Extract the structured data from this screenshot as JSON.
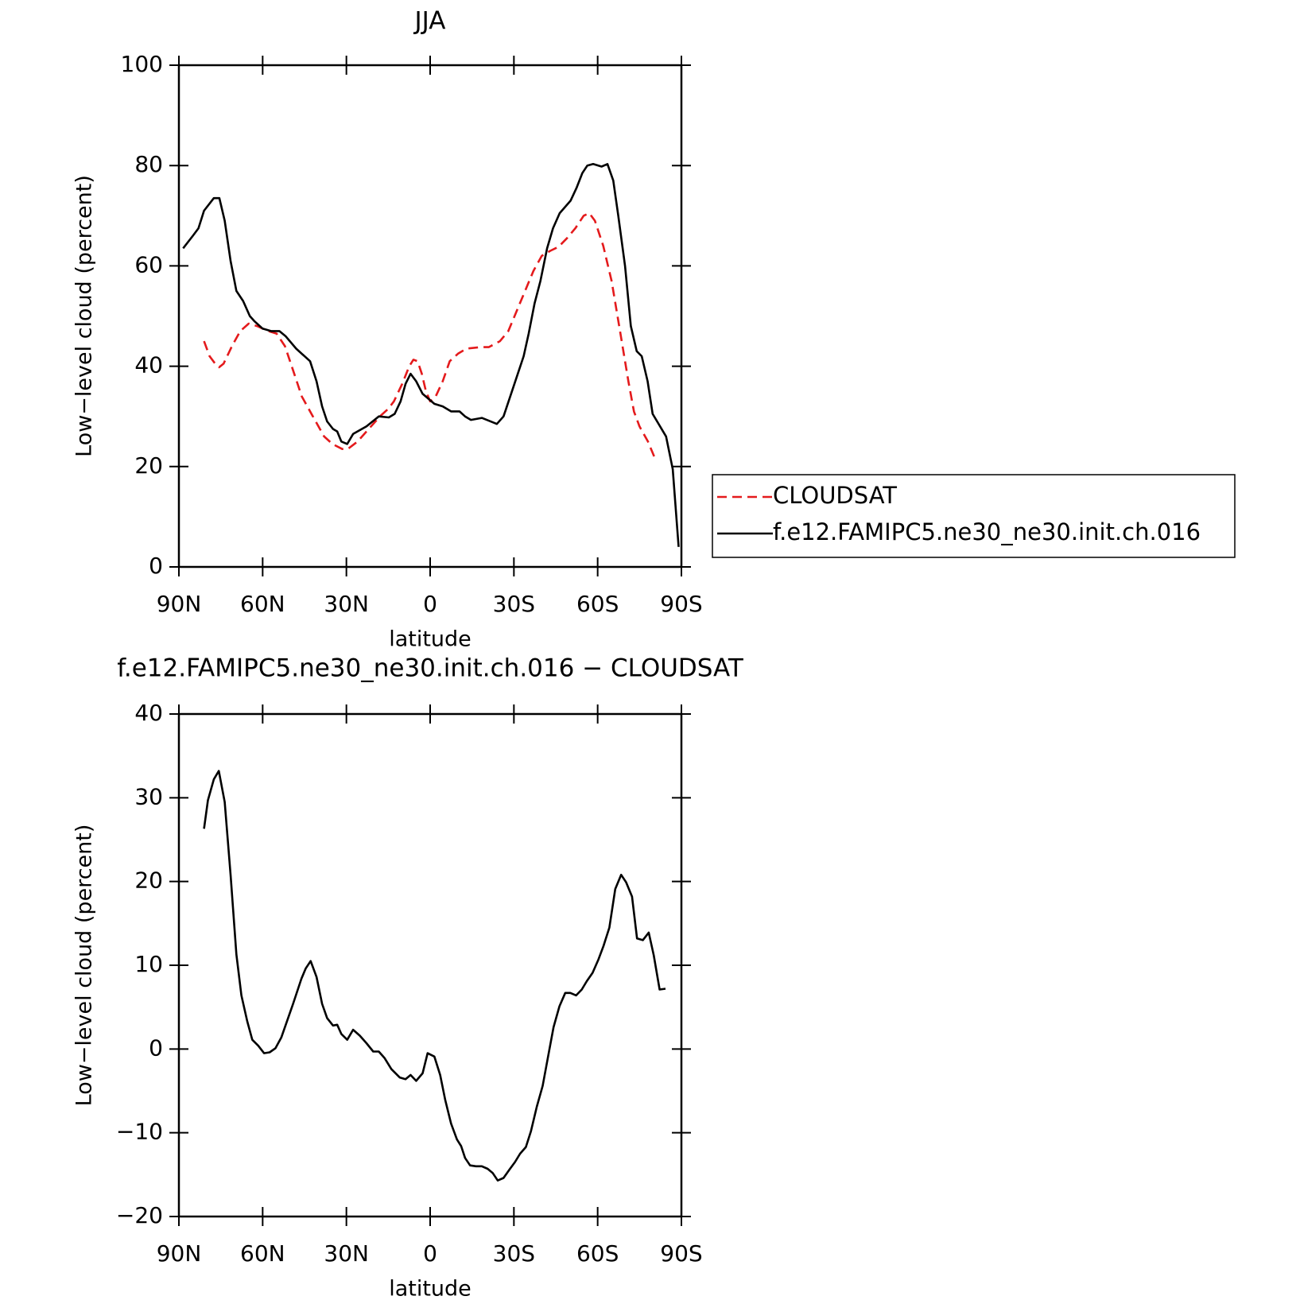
{
  "chart_data": [
    {
      "type": "line",
      "title": "JJA",
      "xlabel": "latitude",
      "ylabel": "Low−level cloud (percent)",
      "xlim": [
        90,
        -90
      ],
      "ylim": [
        0,
        100
      ],
      "xticks": [
        {
          "value": 90,
          "label": "90N"
        },
        {
          "value": 60,
          "label": "60N"
        },
        {
          "value": 30,
          "label": "30N"
        },
        0,
        {
          "value": -30,
          "label": "30S"
        },
        {
          "value": -60,
          "label": "60S"
        },
        {
          "value": -90,
          "label": "90S"
        }
      ],
      "yticks": [
        0,
        20,
        40,
        60,
        80,
        100
      ],
      "legend": "outside right",
      "series": [
        {
          "name": "CLOUDSAT",
          "color": "#e41a1c",
          "dash": true,
          "x": [
            81,
            79,
            77,
            75.6,
            74,
            71,
            68,
            65,
            62,
            58,
            55,
            52,
            49,
            46,
            42,
            38,
            35,
            31.5,
            29.5,
            26,
            22,
            18,
            15,
            13,
            10,
            7.5,
            6,
            4.5,
            3,
            1.5,
            0,
            -2,
            -4.5,
            -7,
            -10,
            -13,
            -18,
            -21,
            -25,
            -28,
            -31,
            -34,
            -37,
            -40,
            -43,
            -46,
            -49,
            -52,
            -55,
            -57,
            -59,
            -62,
            -65,
            -68,
            -71,
            -73,
            -75,
            -78,
            -81
          ],
          "values": [
            45,
            42,
            40.5,
            39.8,
            40.5,
            44,
            47,
            48.5,
            48,
            47,
            46.5,
            44,
            39,
            34,
            30,
            26,
            24.5,
            23.5,
            23.5,
            25,
            27.5,
            30,
            31.5,
            33,
            36.5,
            40,
            41.3,
            41,
            38.5,
            35,
            33,
            34,
            37,
            41,
            42.5,
            43.5,
            43.8,
            43.8,
            45,
            47,
            51,
            55,
            59,
            62,
            63,
            63.8,
            65.5,
            67.5,
            70,
            70.5,
            69,
            64,
            57,
            47,
            37,
            31,
            28,
            25,
            21
          ]
        },
        {
          "name": "f.e12.FAMIPC5.ne30_ne30.init.ch.016",
          "color": "#000000",
          "dash": false,
          "x": [
            88.5,
            85,
            83,
            81,
            77.5,
            75.5,
            73.6,
            71.5,
            69.4,
            67,
            64.6,
            63,
            60,
            57,
            54,
            51.8,
            48,
            43,
            40.7,
            38.7,
            36.9,
            34.8,
            33.3,
            31.8,
            29.7,
            27.6,
            22.8,
            18.4,
            14.8,
            12.7,
            10.6,
            8.8,
            7,
            5,
            2.7,
            -1.5,
            -4.5,
            -7.5,
            -10.5,
            -12.5,
            -14.6,
            -18.5,
            -23.9,
            -26.3,
            -29.3,
            -33.5,
            -35.3,
            -37.4,
            -39.5,
            -41.9,
            -44,
            -46.4,
            -50.3,
            -52.4,
            -54.5,
            -56.3,
            -58.4,
            -61.4,
            -63.5,
            -65.6,
            -67.4,
            -69.8,
            -71.9,
            -74,
            -75.8,
            -77.9,
            -79.7,
            -84.5,
            -86.9,
            -89
          ],
          "values": [
            63.5,
            66,
            67.5,
            71,
            73.5,
            73.5,
            69,
            61,
            55,
            53,
            50,
            49,
            47.5,
            47,
            47,
            46,
            43.5,
            41,
            37,
            32,
            29,
            27.5,
            27,
            25,
            24.5,
            26.5,
            28,
            30,
            29.8,
            30.5,
            33,
            36.5,
            38.5,
            37,
            34.5,
            32.5,
            32,
            31,
            31,
            30,
            29.3,
            29.7,
            28.5,
            30,
            35,
            42,
            46.5,
            52.5,
            57,
            63.5,
            67.5,
            70.5,
            73,
            75.5,
            78.5,
            80,
            80.3,
            79.8,
            80.3,
            77,
            70,
            60,
            48,
            43,
            42,
            37,
            30.5,
            26,
            19.5,
            4
          ]
        }
      ]
    },
    {
      "type": "line",
      "title": "f.e12.FAMIPC5.ne30_ne30.init.ch.016 − CLOUDSAT",
      "xlabel": "latitude",
      "ylabel": "Low−level cloud (percent)",
      "xlim": [
        90,
        -90
      ],
      "ylim": [
        -20,
        40
      ],
      "xticks": [
        {
          "value": 90,
          "label": "90N"
        },
        {
          "value": 60,
          "label": "60N"
        },
        {
          "value": 30,
          "label": "30N"
        },
        0,
        {
          "value": -30,
          "label": "30S"
        },
        {
          "value": -60,
          "label": "60S"
        },
        {
          "value": -90,
          "label": "90S"
        }
      ],
      "yticks": [
        {
          "value": -20,
          "label": "−20"
        },
        {
          "value": -10,
          "label": "−10"
        },
        0,
        10,
        20,
        30,
        40
      ],
      "series": [
        {
          "color": "#000000",
          "dash": false,
          "x": [
            81,
            79.6,
            77.5,
            75.7,
            73.6,
            71.5,
            69.4,
            67.6,
            65.5,
            63.7,
            61.6,
            59.5,
            57.5,
            55.4,
            53.3,
            49.1,
            46.1,
            44.6,
            42.8,
            40.7,
            38.7,
            36.9,
            34.8,
            33.3,
            31.8,
            29.7,
            27.6,
            25.2,
            22.8,
            20.4,
            18.4,
            16.3,
            13.9,
            10.9,
            8.8,
            7,
            5,
            2.7,
            0.9,
            -1.5,
            -3.6,
            -5.4,
            -7.5,
            -9.6,
            -11.1,
            -12.5,
            -14.3,
            -16.4,
            -18.5,
            -20.6,
            -22.4,
            -24.2,
            -26.3,
            -28.4,
            -30.4,
            -32.2,
            -34.3,
            -36.1,
            -38.2,
            -40.3,
            -42.4,
            -44.2,
            -46.3,
            -48.4,
            -50.2,
            -52.3,
            -54.3,
            -56.1,
            -58.2,
            -60.3,
            -62.1,
            -64.2,
            -66.3,
            -68.4,
            -70.2,
            -72.3,
            -74.1,
            -76.2,
            -78.3,
            -80.1,
            -82.2,
            -84.3
          ],
          "values": [
            26.3,
            29.7,
            32.2,
            33.2,
            29.5,
            20.8,
            11.3,
            6.4,
            3.3,
            1.1,
            0.4,
            -0.5,
            -0.4,
            0.1,
            1.4,
            5.4,
            8.4,
            9.6,
            10.5,
            8.6,
            5.4,
            3.7,
            2.8,
            2.9,
            1.8,
            1.1,
            2.3,
            1.6,
            0.7,
            -0.3,
            -0.3,
            -1.1,
            -2.4,
            -3.4,
            -3.6,
            -3.1,
            -3.8,
            -2.9,
            -0.5,
            -0.9,
            -3.1,
            -6.1,
            -8.9,
            -10.8,
            -11.6,
            -13,
            -13.9,
            -14,
            -14,
            -14.3,
            -14.8,
            -15.7,
            -15.4,
            -14.4,
            -13.5,
            -12.5,
            -11.7,
            -9.8,
            -6.9,
            -4.4,
            -0.6,
            2.6,
            5.1,
            6.7,
            6.7,
            6.4,
            7.1,
            8.1,
            9.1,
            10.7,
            12.3,
            14.5,
            19.1,
            20.8,
            19.9,
            18.2,
            13.2,
            13,
            13.9,
            11.2,
            7.1,
            7.2
          ]
        }
      ]
    }
  ]
}
